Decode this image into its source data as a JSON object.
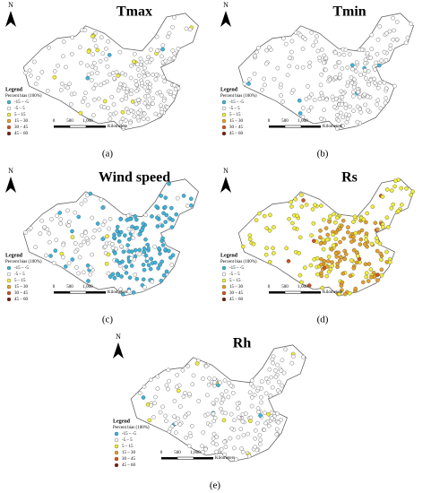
{
  "panels": [
    {
      "title": "Tmax",
      "caption": "(a)"
    },
    {
      "title": "Tmin",
      "caption": "(b)"
    },
    {
      "title": "Wind speed",
      "caption": "(c)"
    },
    {
      "title": "Rs",
      "caption": "(d)"
    },
    {
      "title": "Rh",
      "caption": "(e)"
    }
  ],
  "north": "N",
  "legend": {
    "title": "Legend",
    "subtitle": "Percent bias (100%)",
    "items": [
      {
        "label": "-15 – -5",
        "color": "#35b6e0"
      },
      {
        "label": "-5 – 5",
        "color": "#ffffff"
      },
      {
        "label": "5 – 15",
        "color": "#f3ef2e"
      },
      {
        "label": "15 – 30",
        "color": "#e9a01e"
      },
      {
        "label": "30 – 45",
        "color": "#d2501a"
      },
      {
        "label": "45 – 60",
        "color": "#7a1a0a"
      }
    ]
  },
  "scale": {
    "ticks": [
      "0",
      "500",
      "1,000"
    ],
    "unit": "Kilometers"
  }
}
